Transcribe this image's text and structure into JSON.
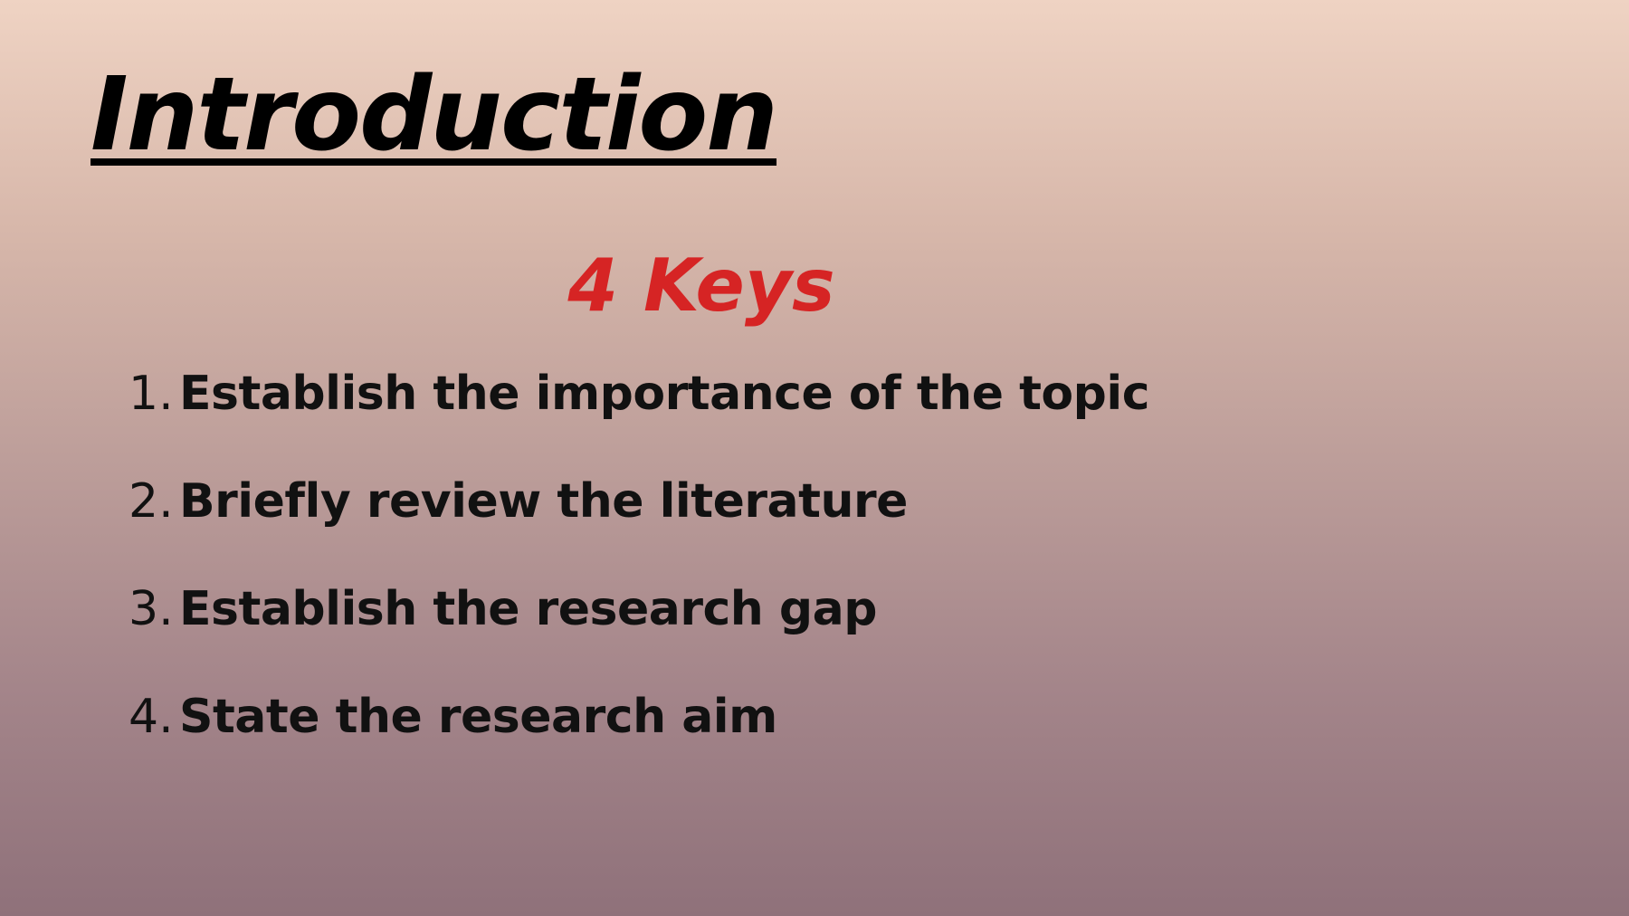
{
  "slide": {
    "title": "Introduction",
    "subtitle": "4 Keys",
    "items": [
      {
        "number": "1.",
        "text": "Establish the importance of the topic"
      },
      {
        "number": "2.",
        "text": "Briefly review the literature"
      },
      {
        "number": "3.",
        "text": "Establish the research gap"
      },
      {
        "number": "4.",
        "text": "State the research aim"
      }
    ],
    "colors": {
      "title": "#000000",
      "subtitle": "#d62424",
      "body_text": "#111111",
      "background_top": "#efd3c3",
      "background_bottom": "#8f717a"
    }
  }
}
